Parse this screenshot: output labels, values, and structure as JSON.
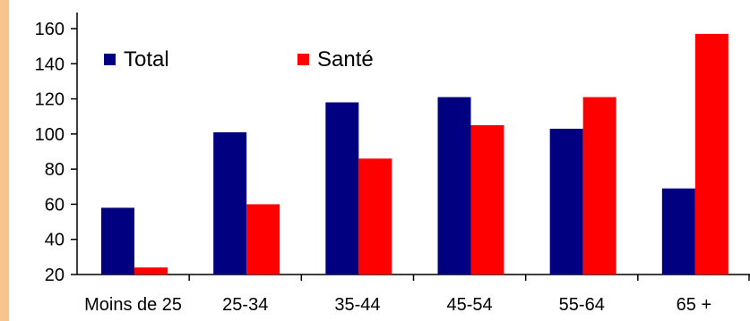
{
  "chart_data": {
    "type": "bar",
    "title": "",
    "xlabel": "",
    "ylabel": "",
    "categories": [
      "Moins de 25",
      "25-34",
      "35-44",
      "45-54",
      "55-64",
      "65 +"
    ],
    "series": [
      {
        "name": "Total",
        "color": "#000080",
        "values": [
          58,
          101,
          118,
          121,
          103,
          69
        ]
      },
      {
        "name": "Santé",
        "color": "#ff0000",
        "values": [
          24,
          60,
          86,
          105,
          121,
          157
        ]
      }
    ],
    "ylim": [
      20,
      160
    ],
    "yticks": [
      "20",
      "40",
      "60",
      "80",
      "100",
      "120",
      "140",
      "160"
    ],
    "grid": false,
    "legend_position": "top-left"
  },
  "colors": {
    "accent_strip": "#f9c38e"
  }
}
